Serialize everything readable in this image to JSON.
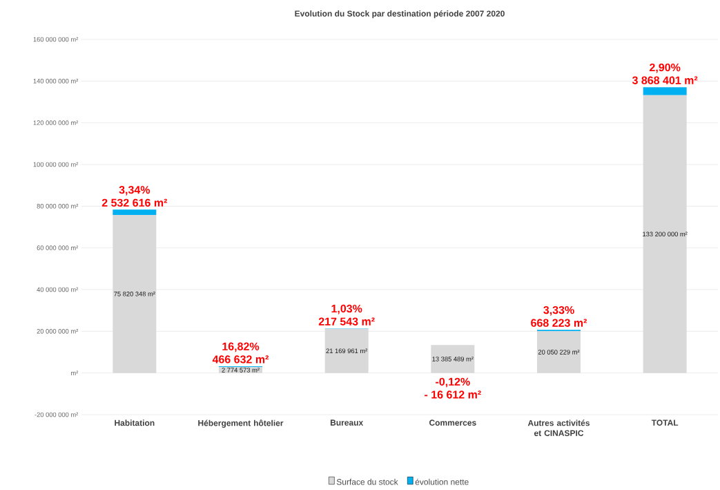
{
  "chart_data": {
    "type": "bar",
    "stacked": true,
    "title": "Evolution du Stock par destination période 2007 2020",
    "categories": [
      "Habitation",
      "Hébergement hôtelier",
      "Bureaux",
      "Commerces",
      "Autres activités et CINASPIC",
      "TOTAL"
    ],
    "series": [
      {
        "name": "Surface du stock",
        "color": "#d9d9d9",
        "values": [
          75820348,
          2774573,
          21169961,
          13385489,
          20050229,
          133200000
        ],
        "value_labels": [
          "75 820 348 m²",
          "2 774 573 m²",
          "21 169 961 m²",
          "13 385 489 m²",
          "20 050 229 m²",
          "133 200 000 m²"
        ]
      },
      {
        "name": "évolution nette",
        "color": "#00b0f0",
        "values": [
          2532616,
          466632,
          217543,
          -16612,
          668223,
          3868401
        ],
        "value_labels": [
          "2 532 616 m²",
          "466 632 m²",
          "217 543 m²",
          "- 16 612 m²",
          "668 223 m²",
          "3 868 401 m²"
        ]
      }
    ],
    "annotations": [
      {
        "text": "3,34%",
        "x": "Habitation",
        "y": 78352964
      },
      {
        "text": "16,82%",
        "x": "Hébergement hôtelier",
        "y": 3241205
      },
      {
        "text": "1,03%",
        "x": "Bureaux",
        "y": 21387504
      },
      {
        "text": "-0,12%",
        "x": "Commerces",
        "y": -16612
      },
      {
        "text": "3,33%",
        "x": "Autres activités et CINASPIC",
        "y": 20718452
      },
      {
        "text": "2,90%",
        "x": "TOTAL",
        "y": 137068401
      }
    ],
    "ylim": [
      -20000000,
      160000000
    ],
    "yticks": [
      {
        "value": -20000000,
        "label": "-20 000 000 m²"
      },
      {
        "value": 0,
        "label": "m²"
      },
      {
        "value": 20000000,
        "label": "20 000 000 m²"
      },
      {
        "value": 40000000,
        "label": "40 000 000 m²"
      },
      {
        "value": 60000000,
        "label": "60 000 000 m²"
      },
      {
        "value": 80000000,
        "label": "80 000 000 m²"
      },
      {
        "value": 100000000,
        "label": "100 000 000 m²"
      },
      {
        "value": 120000000,
        "label": "120 000 000 m²"
      },
      {
        "value": 140000000,
        "label": "140 000 000 m²"
      },
      {
        "value": 160000000,
        "label": "160 000 000 m²"
      }
    ],
    "grid": "y",
    "legend": "bottom"
  }
}
